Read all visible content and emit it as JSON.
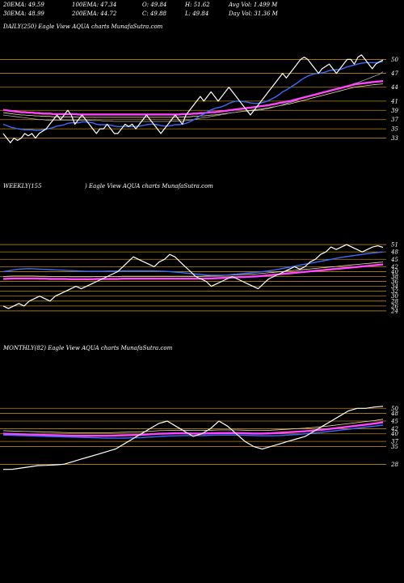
{
  "header": {
    "row1": [
      {
        "text": "20EMA: 49.59"
      },
      {
        "text": "100EMA: 47.34"
      },
      {
        "text": "O: 49.84"
      },
      {
        "text": "H: 51.62"
      },
      {
        "text": "Avg Vol: 1.499 M"
      }
    ],
    "row2": [
      {
        "text": "30EMA: 48.99"
      },
      {
        "text": "200EMA: 44.72"
      },
      {
        "text": "C: 49.88"
      },
      {
        "text": "L: 49.84"
      },
      {
        "text": "Day Vol: 31.36  M"
      }
    ]
  },
  "panels": {
    "daily": {
      "title": "DAILY(250) Eagle  View  AQUA charts MunafaSutra.com"
    },
    "weekly": {
      "title_left": "WEEKLY(155",
      "title_right": ") Eagle  View  AQUA charts MunafaSutra.com"
    },
    "monthly": {
      "title": "MONTHLY(82) Eagle  View  AQUA charts MunafaSutra.com"
    }
  },
  "colors": {
    "background": "#000000",
    "price": "#ffffff",
    "level_lines": "#b8860b",
    "ema_short": "#3a6bff",
    "ema_long": "#ff44ff",
    "ema_mid": "#f5deb3",
    "ema_gray": "#aaaaaa"
  },
  "chart_data": [
    {
      "type": "line",
      "name": "DAILY",
      "ylim": [
        31,
        52
      ],
      "levels": [
        50,
        47,
        44,
        41,
        39,
        37,
        35,
        33
      ],
      "price": [
        34,
        33,
        32,
        33,
        32.5,
        33,
        34,
        33.5,
        34,
        33,
        34,
        34.5,
        35,
        36,
        37,
        38,
        37,
        38,
        39,
        38,
        36,
        37,
        38,
        37,
        36,
        35,
        34,
        35,
        35,
        36,
        35,
        34,
        34,
        35,
        36,
        35.5,
        36,
        35,
        36,
        37,
        38,
        37,
        36,
        35,
        34,
        35,
        36,
        37,
        38,
        37,
        36,
        38,
        39,
        40,
        41,
        42,
        41,
        42,
        43,
        42,
        41,
        42,
        43,
        44,
        43,
        42,
        41,
        40,
        39,
        38,
        39,
        40,
        41,
        42,
        43,
        44,
        45,
        46,
        47,
        46,
        47,
        48,
        49,
        50,
        50.5,
        50,
        49,
        48,
        47,
        48,
        48.5,
        49,
        48,
        47,
        48,
        49,
        50,
        50,
        49,
        50.5,
        51,
        50,
        49,
        48,
        49,
        49.5,
        49.88
      ],
      "ema20": [
        36,
        35.7,
        35.4,
        35.2,
        35,
        34.9,
        34.8,
        34.8,
        34.8,
        34.7,
        34.7,
        34.8,
        34.9,
        35.1,
        35.3,
        35.6,
        35.7,
        35.9,
        36.2,
        36.3,
        36.3,
        36.3,
        36.5,
        36.5,
        36.4,
        36.3,
        36,
        35.9,
        35.9,
        35.9,
        35.8,
        35.6,
        35.5,
        35.5,
        35.5,
        35.5,
        35.5,
        35.5,
        35.6,
        35.7,
        35.9,
        36,
        36,
        35.9,
        35.7,
        35.6,
        35.6,
        35.7,
        35.9,
        35.9,
        36,
        36.2,
        36.5,
        36.9,
        37.3,
        37.9,
        38.2,
        38.7,
        39.1,
        39.4,
        39.6,
        39.8,
        40.1,
        40.5,
        40.8,
        41,
        41,
        40.9,
        40.8,
        40.6,
        40.5,
        40.5,
        40.6,
        40.8,
        41.1,
        41.5,
        41.9,
        42.4,
        43,
        43.4,
        43.9,
        44.4,
        44.9,
        45.5,
        46,
        46.4,
        46.7,
        46.9,
        47,
        47.1,
        47.3,
        47.6,
        47.7,
        47.8,
        47.8,
        48.1,
        48.4,
        48.6,
        48.8,
        49,
        49.2,
        49.3,
        49.3,
        49.3,
        49.3,
        49.4,
        49.59
      ],
      "ema100": [
        38,
        37.9,
        37.8,
        37.7,
        37.6,
        37.5,
        37.4,
        37.3,
        37.2,
        37.1,
        37,
        37,
        36.9,
        36.9,
        36.9,
        36.9,
        36.9,
        36.9,
        36.9,
        36.9,
        36.9,
        36.9,
        36.9,
        36.9,
        36.9,
        36.8,
        36.8,
        36.8,
        36.7,
        36.7,
        36.7,
        36.6,
        36.6,
        36.6,
        36.6,
        36.6,
        36.6,
        36.6,
        36.6,
        36.6,
        36.6,
        36.6,
        36.6,
        36.6,
        36.6,
        36.6,
        36.6,
        36.7,
        36.7,
        36.7,
        36.7,
        36.8,
        36.9,
        37,
        37.1,
        37.3,
        37.4,
        37.5,
        37.7,
        37.8,
        37.9,
        38.1,
        38.2,
        38.4,
        38.5,
        38.6,
        38.7,
        38.8,
        38.8,
        38.9,
        38.9,
        39,
        39.1,
        39.3,
        39.4,
        39.6,
        39.8,
        40,
        40.2,
        40.5,
        40.7,
        40.9,
        41.2,
        41.5,
        41.7,
        42,
        42.2,
        42.4,
        42.6,
        42.8,
        43,
        43.2,
        43.4,
        43.6,
        43.8,
        44,
        44.3,
        44.5,
        44.8,
        45,
        45.3,
        45.6,
        45.9,
        46.2,
        46.5,
        46.8,
        47.34
      ],
      "ema200": [
        38.5,
        38.4,
        38.3,
        38.2,
        38.1,
        38,
        38,
        37.9,
        37.9,
        37.8,
        37.8,
        37.7,
        37.7,
        37.7,
        37.6,
        37.6,
        37.6,
        37.6,
        37.6,
        37.6,
        37.6,
        37.5,
        37.5,
        37.5,
        37.5,
        37.5,
        37.5,
        37.5,
        37.5,
        37.5,
        37.5,
        37.5,
        37.5,
        37.5,
        37.5,
        37.5,
        37.5,
        37.5,
        37.5,
        37.5,
        37.5,
        37.5,
        37.5,
        37.5,
        37.5,
        37.5,
        37.5,
        37.5,
        37.5,
        37.5,
        37.6,
        37.6,
        37.6,
        37.7,
        37.7,
        37.8,
        37.8,
        37.9,
        38,
        38,
        38.1,
        38.2,
        38.3,
        38.4,
        38.5,
        38.6,
        38.7,
        38.8,
        38.9,
        39,
        39.1,
        39.2,
        39.3,
        39.4,
        39.5,
        39.7,
        39.8,
        40,
        40.1,
        40.3,
        40.4,
        40.6,
        40.8,
        41,
        41.2,
        41.4,
        41.6,
        41.8,
        42,
        42.2,
        42.4,
        42.6,
        42.8,
        43,
        43.2,
        43.4,
        43.6,
        43.8,
        44,
        44.1,
        44.2,
        44.3,
        44.4,
        44.5,
        44.6,
        44.65,
        44.72
      ]
    },
    {
      "type": "line",
      "name": "WEEKLY",
      "ylim": [
        22,
        53
      ],
      "levels": [
        51,
        48,
        45,
        42,
        40,
        38,
        36,
        34,
        32,
        30,
        28,
        26,
        24
      ],
      "price": [
        26,
        25,
        26,
        27,
        26,
        28,
        29,
        30,
        29,
        28,
        30,
        31,
        32,
        33,
        34,
        33,
        34,
        35,
        36,
        37,
        38,
        39,
        40,
        42,
        44,
        46,
        45,
        44,
        43,
        42,
        44,
        45,
        47,
        46,
        44,
        42,
        40,
        38,
        37,
        36,
        34,
        35,
        36,
        37,
        38,
        37,
        36,
        35,
        34,
        33,
        35,
        37,
        38,
        39,
        40,
        41,
        42,
        41,
        42,
        44,
        45,
        47,
        48,
        50,
        49,
        50,
        51,
        50,
        49,
        48,
        49,
        50,
        50.5,
        49.88
      ],
      "ema_a": [
        40,
        40.3,
        40.7,
        41,
        41.1,
        41.2,
        41.1,
        41,
        40.9,
        40.8,
        40.7,
        40.6,
        40.5,
        40.4,
        40.3,
        40.2,
        40.1,
        40.1,
        40.1,
        40.1,
        40.2,
        40.2,
        40.2,
        40.3,
        40.3,
        40.3,
        40.3,
        40.3,
        40.3,
        40.3,
        40.2,
        40.1,
        40,
        39.8,
        39.6,
        39.4,
        39.2,
        39,
        38.8,
        38.6,
        38.5,
        38.5,
        38.5,
        38.6,
        38.8,
        39,
        39.2,
        39.4,
        39.6,
        39.8,
        40,
        40.3,
        40.6,
        41,
        41.4,
        41.8,
        42.2,
        42.6,
        43,
        43.4,
        43.8,
        44.2,
        44.6,
        45,
        45.4,
        45.8,
        46.1,
        46.4,
        46.7,
        47,
        47.3,
        47.6,
        47.8,
        48
      ],
      "ema_b": [
        37,
        37.1,
        37.2,
        37.2,
        37.2,
        37.2,
        37.2,
        37.1,
        37.1,
        37,
        37,
        37,
        37,
        36.9,
        36.9,
        36.9,
        36.9,
        36.9,
        37,
        37,
        37,
        37,
        37,
        37.1,
        37.1,
        37.1,
        37.1,
        37.1,
        37.1,
        37.1,
        37.1,
        37.1,
        37.1,
        37.1,
        37.1,
        37.1,
        37.1,
        37.1,
        37.1,
        37.2,
        37.2,
        37.3,
        37.4,
        37.5,
        37.6,
        37.7,
        37.8,
        37.9,
        38,
        38.1,
        38.3,
        38.5,
        38.7,
        38.9,
        39.1,
        39.3,
        39.5,
        39.7,
        39.9,
        40.1,
        40.3,
        40.5,
        40.7,
        40.9,
        41.1,
        41.3,
        41.5,
        41.7,
        41.9,
        42.1,
        42.3,
        42.5,
        42.7,
        42.9
      ]
    },
    {
      "type": "line",
      "name": "MONTHLY",
      "ylim": [
        24,
        52
      ],
      "levels": [
        50,
        48,
        45,
        42,
        40,
        37,
        35,
        28
      ],
      "price": [
        26,
        26,
        26.5,
        27,
        27.5,
        27.6,
        27.8,
        28,
        29,
        30,
        31,
        32,
        33,
        34,
        36,
        38,
        40,
        42,
        44,
        45,
        43,
        41,
        39,
        40,
        42,
        45,
        43,
        40,
        37,
        35,
        34,
        35,
        36,
        37,
        38,
        39,
        41,
        43,
        45,
        47,
        49,
        50,
        50,
        50.5,
        50.8
      ],
      "ema_blue": [
        39.5,
        39.4,
        39.3,
        39.2,
        39.1,
        39,
        38.9,
        38.8,
        38.7,
        38.6,
        38.5,
        38.4,
        38.3,
        38.3,
        38.3,
        38.4,
        38.5,
        38.7,
        38.9,
        39.1,
        39.2,
        39.3,
        39.3,
        39.3,
        39.4,
        39.5,
        39.5,
        39.5,
        39.4,
        39.3,
        39.2,
        39.2,
        39.3,
        39.5,
        39.7,
        40,
        40.3,
        40.6,
        41,
        41.4,
        41.8,
        42.2,
        42.6,
        43,
        43.4
      ],
      "ema_pink": [
        40,
        39.9,
        39.8,
        39.7,
        39.6,
        39.5,
        39.4,
        39.3,
        39.2,
        39.2,
        39.2,
        39.2,
        39.2,
        39.3,
        39.4,
        39.5,
        39.6,
        39.8,
        40,
        40.1,
        40.2,
        40.2,
        40.1,
        40.1,
        40.2,
        40.3,
        40.3,
        40.3,
        40.2,
        40.1,
        40.1,
        40.2,
        40.4,
        40.6,
        40.8,
        41,
        41.3,
        41.6,
        42,
        42.4,
        42.8,
        43.2,
        43.6,
        44,
        44.5
      ]
    }
  ]
}
